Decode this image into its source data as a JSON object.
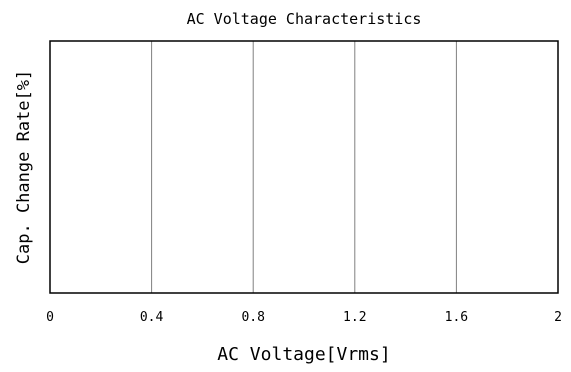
{
  "chart_data": {
    "type": "line",
    "title": "AC Voltage Characteristics",
    "xlabel": "AC Voltage[Vrms]",
    "ylabel": "Cap. Change Rate[%]",
    "xlim": [
      0,
      2
    ],
    "x_ticks": [
      0,
      0.4,
      0.8,
      1.2,
      1.6,
      2
    ],
    "x_tick_labels": [
      "0",
      "0.4",
      "0.8",
      "1.2",
      "1.6",
      "2"
    ],
    "grid": {
      "x": true,
      "y": false
    },
    "series": []
  },
  "colors": {
    "background": "#ffffff",
    "axis": "#000000",
    "grid": "#808080",
    "text": "#000000"
  }
}
